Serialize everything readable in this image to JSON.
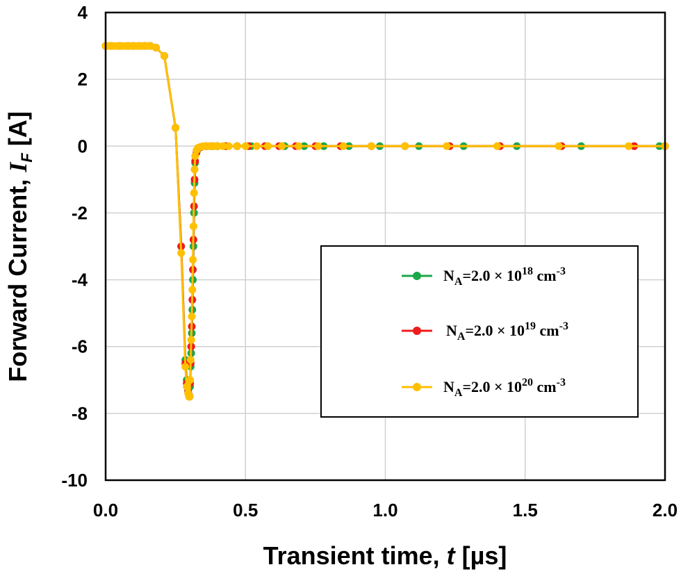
{
  "chart_data": {
    "type": "line",
    "xlabel": "Transient time, ",
    "xlabel_var": "t",
    "xlabel_unit": " [µs]",
    "ylabel": "Forward Current, ",
    "ylabel_var": "I",
    "ylabel_sub": "F",
    "ylabel_unit": " [A]",
    "xlim": [
      0,
      2.0
    ],
    "ylim": [
      -10,
      4
    ],
    "x_ticks": [
      "0.0",
      "0.5",
      "1.0",
      "1.5",
      "2.0"
    ],
    "y_ticks": [
      "4",
      "2",
      "0",
      "-2",
      "-4",
      "-6",
      "-8",
      "-10"
    ],
    "grid": true,
    "legend_position": "right-center",
    "series": [
      {
        "name": "NA=2.0×10^18 cm^-3",
        "legend": {
          "base": "N",
          "sub": "A",
          "mid": "=2.0 × 10",
          "sup": "18",
          "unit": " cm",
          "unit_sup": "-3"
        },
        "color": "#1aa84a",
        "x": [
          0,
          0.02,
          0.05,
          0.08,
          0.1,
          0.12,
          0.14,
          0.16,
          0.18,
          0.21,
          0.25,
          0.27,
          0.285,
          0.29,
          0.295,
          0.298,
          0.3,
          0.302,
          0.304,
          0.306,
          0.308,
          0.31,
          0.312,
          0.314,
          0.316,
          0.318,
          0.32,
          0.325,
          0.33,
          0.34,
          0.36,
          0.38,
          0.4,
          0.43,
          0.47,
          0.52,
          0.58,
          0.64,
          0.71,
          0.78,
          0.87,
          0.98,
          1.12,
          1.28,
          1.47,
          1.7,
          1.98,
          2.0
        ],
        "y": [
          3.0,
          3.0,
          3.0,
          3.0,
          3.0,
          3.0,
          3.0,
          3.0,
          2.95,
          2.7,
          0.55,
          -3.0,
          -6.4,
          -7.0,
          -7.3,
          -7.45,
          -7.5,
          -7.2,
          -6.6,
          -6.2,
          -5.6,
          -4.9,
          -4.0,
          -3.0,
          -2.0,
          -1.1,
          -0.5,
          -0.2,
          -0.08,
          -0.03,
          0,
          0,
          0,
          0,
          0,
          0,
          0,
          0,
          0,
          0,
          0,
          0,
          0,
          0,
          0,
          0,
          0,
          0
        ]
      },
      {
        "name": "NA=2.0×10^19 cm^-3",
        "legend": {
          "base": "N",
          "sub": "A",
          "mid": "=2.0 × 10",
          "sup": "19",
          "unit": " cm",
          "unit_sup": "-3"
        },
        "color": "#ee1c1c",
        "x": [
          0,
          0.02,
          0.05,
          0.08,
          0.1,
          0.12,
          0.14,
          0.16,
          0.18,
          0.21,
          0.25,
          0.27,
          0.285,
          0.29,
          0.295,
          0.298,
          0.3,
          0.302,
          0.304,
          0.306,
          0.308,
          0.31,
          0.312,
          0.314,
          0.316,
          0.318,
          0.32,
          0.325,
          0.33,
          0.34,
          0.36,
          0.38,
          0.4,
          0.43,
          0.47,
          0.51,
          0.57,
          0.62,
          0.68,
          0.75,
          0.84,
          0.95,
          1.07,
          1.23,
          1.41,
          1.63,
          1.89,
          2.0
        ],
        "y": [
          3.0,
          3.0,
          3.0,
          3.0,
          3.0,
          3.0,
          3.0,
          3.0,
          2.95,
          2.7,
          0.55,
          -3.0,
          -6.5,
          -7.1,
          -7.35,
          -7.45,
          -7.5,
          -7.1,
          -6.5,
          -6.0,
          -5.4,
          -4.6,
          -3.7,
          -2.8,
          -1.8,
          -1.0,
          -0.45,
          -0.18,
          -0.07,
          -0.03,
          0,
          0,
          0,
          0,
          0,
          0,
          0,
          0,
          0,
          0,
          0,
          0,
          0,
          0,
          0,
          0,
          0,
          0
        ]
      },
      {
        "name": "NA=2.0×10^20 cm^-3",
        "legend": {
          "base": "N",
          "sub": "A",
          "mid": "=2.0 × 10",
          "sup": "20",
          "unit": " cm",
          "unit_sup": "-3"
        },
        "color": "#ffc000",
        "x": [
          0,
          0.01,
          0.02,
          0.03,
          0.04,
          0.05,
          0.06,
          0.07,
          0.08,
          0.09,
          0.1,
          0.11,
          0.12,
          0.13,
          0.14,
          0.15,
          0.16,
          0.18,
          0.21,
          0.25,
          0.27,
          0.285,
          0.29,
          0.295,
          0.298,
          0.3,
          0.302,
          0.304,
          0.306,
          0.308,
          0.31,
          0.312,
          0.314,
          0.316,
          0.318,
          0.32,
          0.325,
          0.33,
          0.34,
          0.35,
          0.36,
          0.37,
          0.38,
          0.39,
          0.4,
          0.42,
          0.44,
          0.47,
          0.5,
          0.54,
          0.58,
          0.63,
          0.69,
          0.76,
          0.85,
          0.95,
          1.07,
          1.22,
          1.4,
          1.62,
          1.87,
          2.0
        ],
        "y": [
          3.0,
          3.0,
          3.0,
          3.0,
          3.0,
          3.0,
          3.0,
          3.0,
          3.0,
          3.0,
          3.0,
          3.0,
          3.0,
          3.0,
          3.0,
          3.0,
          3.0,
          2.95,
          2.7,
          0.55,
          -3.2,
          -6.6,
          -7.2,
          -7.4,
          -7.5,
          -7.5,
          -7.0,
          -6.4,
          -5.8,
          -5.1,
          -4.3,
          -3.4,
          -2.4,
          -1.4,
          -0.7,
          -0.3,
          -0.12,
          -0.05,
          -0.02,
          0,
          0,
          0,
          0,
          0,
          0,
          0,
          0,
          0,
          0,
          0,
          0,
          0,
          0,
          0,
          0,
          0,
          0,
          0,
          0,
          0,
          0,
          0
        ]
      }
    ]
  }
}
